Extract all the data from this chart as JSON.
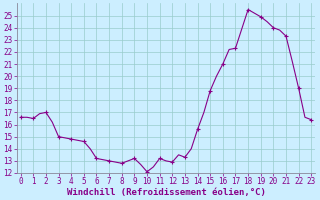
{
  "hours": [
    0,
    0.5,
    1,
    1.5,
    2,
    2.5,
    3,
    3.5,
    4,
    4.5,
    5,
    5.5,
    6,
    6.5,
    7,
    7.5,
    8,
    8.5,
    9,
    9.5,
    10,
    10.5,
    11,
    11.5,
    12,
    12.5,
    13,
    13.5,
    14,
    14.5,
    15,
    15.5,
    16,
    16.5,
    17,
    17.5,
    18,
    18.5,
    19,
    19.5,
    20,
    20.5,
    21,
    21.5,
    22,
    22.5,
    23
  ],
  "values": [
    16.6,
    16.6,
    16.5,
    16.9,
    17.0,
    16.2,
    15.0,
    14.9,
    14.8,
    14.7,
    14.6,
    14.0,
    13.2,
    13.1,
    13.0,
    12.9,
    12.8,
    13.0,
    13.2,
    12.7,
    12.1,
    12.5,
    13.2,
    13.0,
    12.9,
    13.5,
    13.3,
    14.0,
    15.6,
    17.0,
    18.8,
    20.0,
    21.0,
    22.2,
    22.3,
    23.9,
    25.5,
    25.2,
    24.9,
    24.5,
    24.0,
    23.8,
    23.3,
    21.2,
    19.0,
    16.6,
    16.4
  ],
  "marker_hours": [
    0,
    1,
    2,
    3,
    4,
    5,
    6,
    7,
    8,
    9,
    10,
    11,
    12,
    13,
    14,
    15,
    16,
    17,
    18,
    19,
    20,
    21,
    22,
    23
  ],
  "marker_values": [
    16.6,
    16.5,
    17.0,
    15.0,
    14.8,
    14.6,
    13.2,
    13.0,
    12.8,
    13.2,
    12.1,
    13.2,
    12.9,
    13.3,
    15.6,
    18.8,
    21.0,
    22.3,
    25.5,
    24.9,
    24.0,
    23.3,
    19.0,
    16.4
  ],
  "line_color": "#880088",
  "marker": "+",
  "bg_color": "#cceeff",
  "grid_color": "#99cccc",
  "xlabel": "Windchill (Refroidissement éolien,°C)",
  "xlabel_color": "#880088",
  "tick_color": "#880088",
  "ylim": [
    12,
    26
  ],
  "xlim": [
    -0.3,
    23.3
  ],
  "yticks": [
    12,
    13,
    14,
    15,
    16,
    17,
    18,
    19,
    20,
    21,
    22,
    23,
    24,
    25
  ],
  "xticks": [
    0,
    1,
    2,
    3,
    4,
    5,
    6,
    7,
    8,
    9,
    10,
    11,
    12,
    13,
    14,
    15,
    16,
    17,
    18,
    19,
    20,
    21,
    22,
    23
  ],
  "label_fontsize": 6.5,
  "tick_fontsize": 5.5
}
